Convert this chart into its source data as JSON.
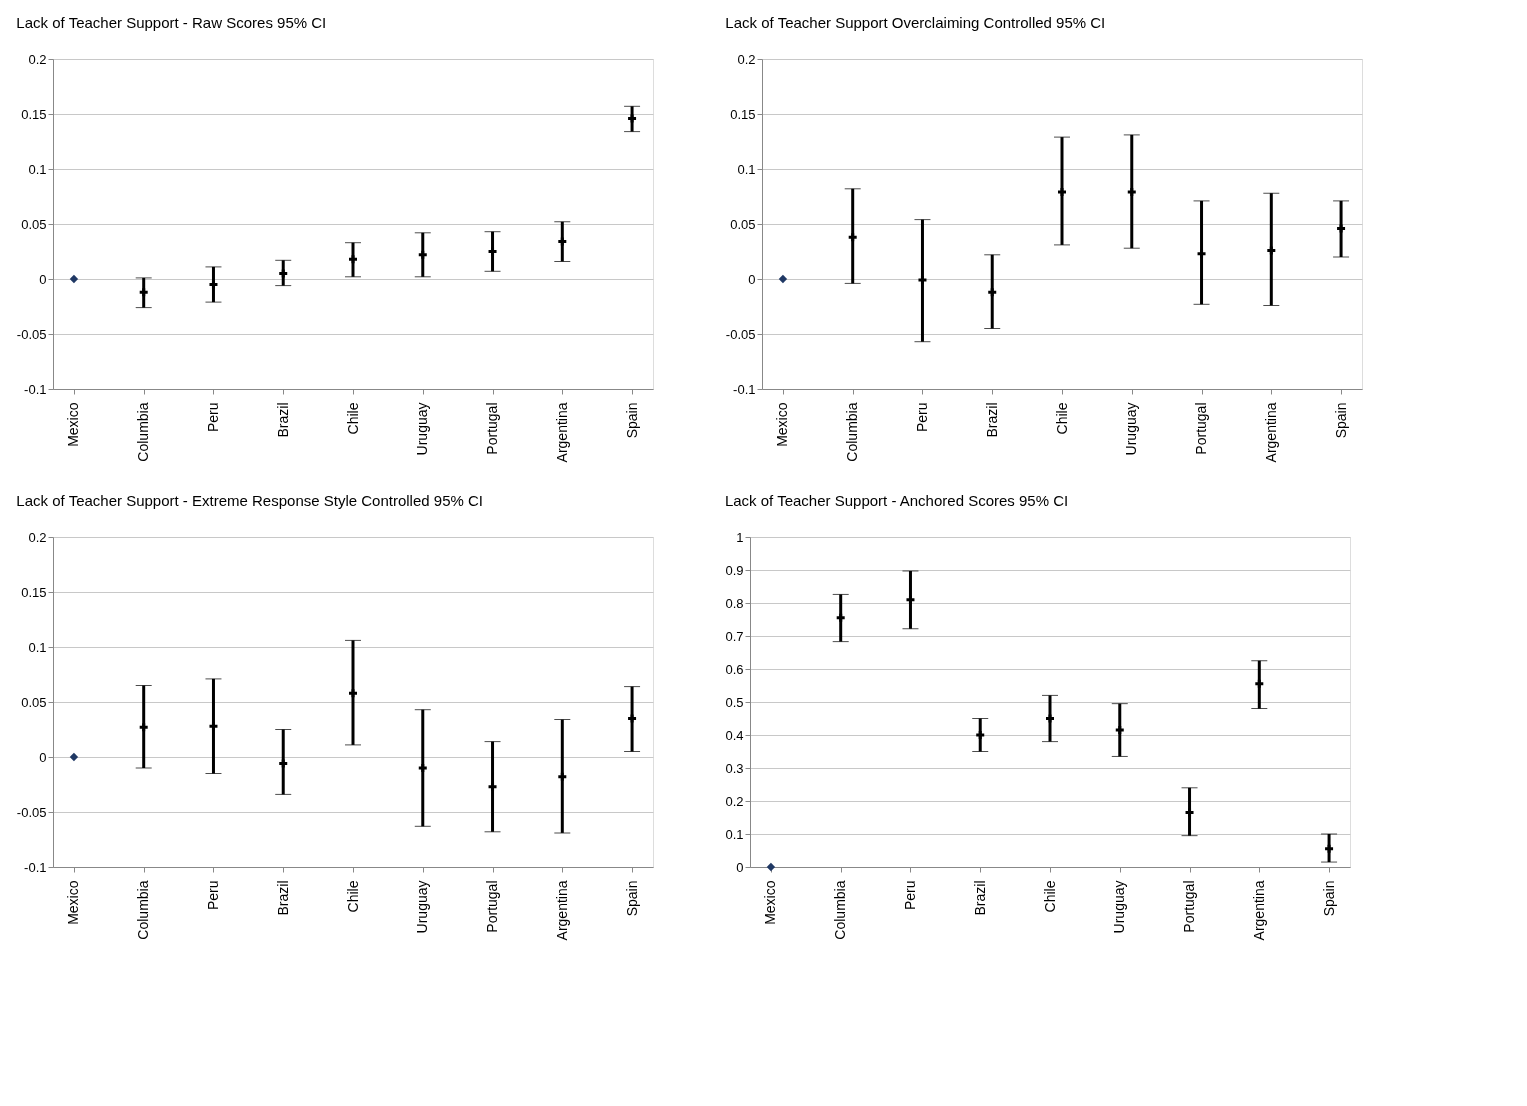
{
  "chart_data": [
    {
      "type": "scatter",
      "title": "Lack of Teacher Support  -  Raw Scores  95% CI",
      "categories": [
        "Mexico",
        "Columbia",
        "Peru",
        "Brazil",
        "Chile",
        "Uruguay",
        "Portugal",
        "Argentina",
        "Spain"
      ],
      "ylim": [
        -0.1,
        0.2
      ],
      "yticks": [
        -0.1,
        -0.05,
        0,
        0.05,
        0.1,
        0.15,
        0.2
      ],
      "grid": "y",
      "series": [
        {
          "color": "#1f3864",
          "marker": "diamond",
          "values": [
            0,
            null,
            null,
            null,
            null,
            null,
            null,
            null,
            null
          ]
        },
        {
          "color": "#000000",
          "marker": "cross",
          "values": [
            null,
            -0.012,
            -0.005,
            0.005,
            0.018,
            0.022,
            0.025,
            0.034,
            0.146
          ],
          "errors": [
            null,
            [
              -0.026,
              0.001
            ],
            [
              -0.021,
              0.011
            ],
            [
              -0.006,
              0.017
            ],
            [
              0.002,
              0.033
            ],
            [
              0.002,
              0.042
            ],
            [
              0.007,
              0.043
            ],
            [
              0.016,
              0.052
            ],
            [
              0.134,
              0.157
            ]
          ]
        }
      ]
    },
    {
      "type": "scatter",
      "title": "Lack of Teacher Support   Overclaiming Controlled  95% CI",
      "categories": [
        "Mexico",
        "Columbia",
        "Peru",
        "Brazil",
        "Chile",
        "Uruguay",
        "Portugal",
        "Argentina",
        "Spain"
      ],
      "ylim": [
        -0.1,
        0.2
      ],
      "yticks": [
        -0.1,
        -0.05,
        0,
        0.05,
        0.1,
        0.15,
        0.2
      ],
      "grid": "y",
      "series": [
        {
          "color": "#1f3864",
          "marker": "diamond",
          "values": [
            0,
            null,
            null,
            null,
            null,
            null,
            null,
            null,
            null
          ]
        },
        {
          "color": "#000000",
          "marker": "cross",
          "values": [
            null,
            0.038,
            -0.001,
            -0.012,
            0.079,
            0.079,
            0.023,
            0.026,
            0.046
          ],
          "errors": [
            null,
            [
              -0.004,
              0.082
            ],
            [
              -0.057,
              0.054
            ],
            [
              -0.045,
              0.022
            ],
            [
              0.031,
              0.129
            ],
            [
              0.028,
              0.131
            ],
            [
              -0.023,
              0.071
            ],
            [
              -0.024,
              0.078
            ],
            [
              0.02,
              0.071
            ]
          ]
        }
      ]
    },
    {
      "type": "scatter",
      "title": "Lack of Teacher Support  -  Extreme Response Style Controlled  95% CI",
      "categories": [
        "Mexico",
        "Columbia",
        "Peru",
        "Brazil",
        "Chile",
        "Uruguay",
        "Portugal",
        "Argentina",
        "Spain"
      ],
      "ylim": [
        -0.1,
        0.2
      ],
      "yticks": [
        -0.1,
        -0.05,
        0,
        0.05,
        0.1,
        0.15,
        0.2
      ],
      "grid": "y",
      "series": [
        {
          "color": "#1f3864",
          "marker": "diamond",
          "values": [
            0,
            null,
            null,
            null,
            null,
            null,
            null,
            null,
            null
          ]
        },
        {
          "color": "#000000",
          "marker": "cross",
          "values": [
            null,
            0.027,
            0.028,
            -0.006,
            0.058,
            -0.01,
            -0.027,
            -0.018,
            0.035
          ],
          "errors": [
            null,
            [
              -0.01,
              0.065
            ],
            [
              -0.015,
              0.071
            ],
            [
              -0.034,
              0.025
            ],
            [
              0.011,
              0.106
            ],
            [
              -0.063,
              0.043
            ],
            [
              -0.068,
              0.014
            ],
            [
              -0.069,
              0.034
            ],
            [
              0.005,
              0.064
            ]
          ]
        }
      ]
    },
    {
      "type": "scatter",
      "title": "Lack of Teacher Support  -  Anchored Scores  95% CI",
      "categories": [
        "Mexico",
        "Columbia",
        "Peru",
        "Brazil",
        "Chile",
        "Uruguay",
        "Portugal",
        "Argentina",
        "Spain"
      ],
      "ylim": [
        0,
        1
      ],
      "yticks": [
        0,
        0.1,
        0.2,
        0.3,
        0.4,
        0.5,
        0.6,
        0.7,
        0.8,
        0.9,
        1
      ],
      "grid": "y",
      "series": [
        {
          "color": "#1f3864",
          "marker": "diamond",
          "values": [
            0,
            null,
            null,
            null,
            null,
            null,
            null,
            null,
            null
          ]
        },
        {
          "color": "#000000",
          "marker": "cross",
          "values": [
            null,
            0.755,
            0.81,
            0.4,
            0.45,
            0.415,
            0.165,
            0.555,
            0.055
          ],
          "errors": [
            null,
            [
              0.683,
              0.826
            ],
            [
              0.722,
              0.897
            ],
            [
              0.35,
              0.45
            ],
            [
              0.38,
              0.52
            ],
            [
              0.335,
              0.495
            ],
            [
              0.095,
              0.24
            ],
            [
              0.48,
              0.625
            ],
            [
              0.015,
              0.1
            ]
          ]
        }
      ]
    }
  ]
}
